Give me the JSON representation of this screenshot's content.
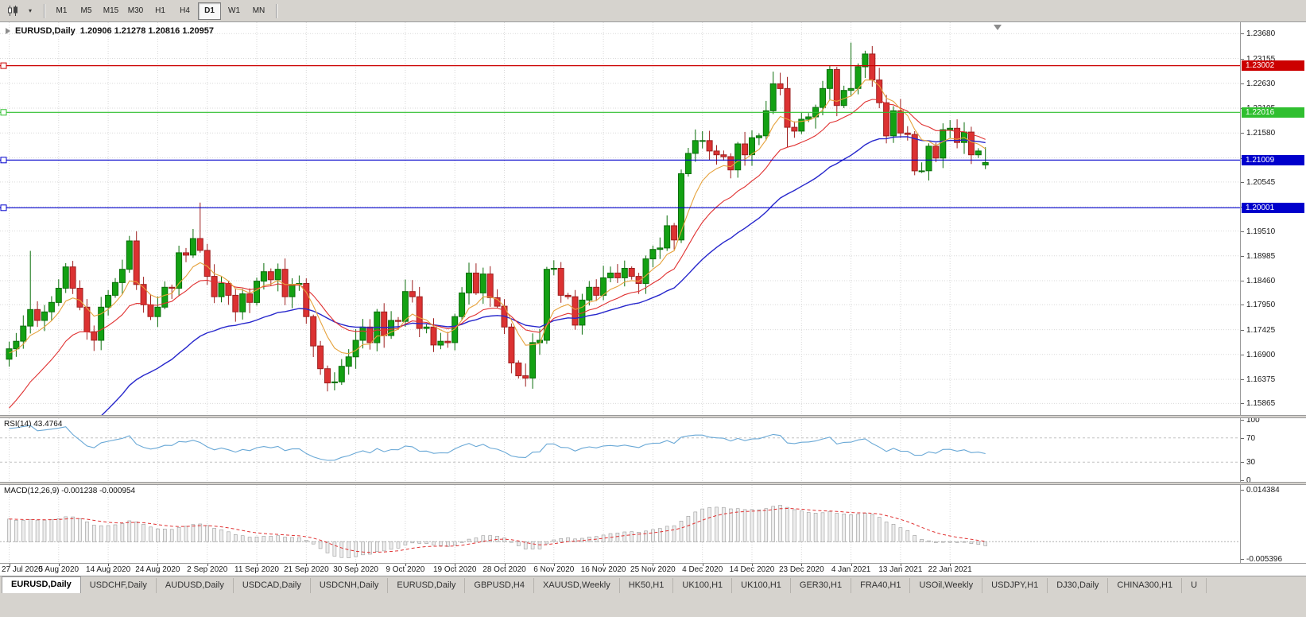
{
  "toolbar": {
    "periods": [
      "M1",
      "M5",
      "M15",
      "M30",
      "H1",
      "H4",
      "D1",
      "W1",
      "MN"
    ],
    "active_period": "D1"
  },
  "chart": {
    "title": "EURUSD,Daily",
    "ohlc_text": "1.20906 1.21278 1.20816 1.20957",
    "price_top": 1.2392,
    "price_bottom": 1.1562,
    "price_ticks": [
      1.2368,
      1.23155,
      1.2263,
      1.22105,
      1.2158,
      1.21055,
      1.20545,
      1.2002,
      1.1951,
      1.18985,
      1.1846,
      1.1795,
      1.17425,
      1.169,
      1.16375,
      1.15865
    ],
    "hlines": [
      {
        "value": 1.23002,
        "label": "1.23002",
        "color": "#cc0000"
      },
      {
        "value": 1.22016,
        "label": "1.22016",
        "color": "#2fbf2f"
      },
      {
        "value": 1.21009,
        "label": "1.21009",
        "color": "#0000cc"
      },
      {
        "value": 1.20001,
        "label": "1.20001",
        "color": "#0000cc"
      }
    ],
    "dates": [
      "27 Jul 2020",
      "5 Aug 2020",
      "14 Aug 2020",
      "24 Aug 2020",
      "2 Sep 2020",
      "11 Sep 2020",
      "21 Sep 2020",
      "30 Sep 2020",
      "9 Oct 2020",
      "19 Oct 2020",
      "28 Oct 2020",
      "6 Nov 2020",
      "16 Nov 2020",
      "25 Nov 2020",
      "4 Dec 2020",
      "14 Dec 2020",
      "23 Dec 2020",
      "4 Jan 2021",
      "13 Jan 2021",
      "22 Jan 2021"
    ],
    "colors": {
      "up_fill": "#13a113",
      "up_stroke": "#0b6e0b",
      "down_fill": "#dc3232",
      "down_stroke": "#9e1f1f",
      "grid": "#d9d9d9"
    }
  },
  "chart_data": {
    "type": "candlestick",
    "symbol": "EURUSD",
    "timeframe": "Daily",
    "current_ohlc": {
      "open": 1.20906,
      "high": 1.21278,
      "low": 1.20816,
      "close": 1.20957
    },
    "first_open": 1.168,
    "closes": [
      1.1702,
      1.1718,
      1.175,
      1.1785,
      1.1762,
      1.178,
      1.18,
      1.183,
      1.1875,
      1.183,
      1.179,
      1.1738,
      1.172,
      1.179,
      1.1815,
      1.1842,
      1.187,
      1.193,
      1.1838,
      1.1795,
      1.177,
      1.179,
      1.1832,
      1.183,
      1.1905,
      1.19,
      1.1935,
      1.191,
      1.1855,
      1.1812,
      1.184,
      1.1815,
      1.178,
      1.1818,
      1.18,
      1.1845,
      1.1865,
      1.1848,
      1.187,
      1.1812,
      1.1838,
      1.184,
      1.177,
      1.1708,
      1.166,
      1.163,
      1.1632,
      1.1665,
      1.1685,
      1.172,
      1.1748,
      1.1715,
      1.178,
      1.173,
      1.1762,
      1.176,
      1.1823,
      1.1812,
      1.1745,
      1.1748,
      1.171,
      1.1718,
      1.1715,
      1.177,
      1.182,
      1.1862,
      1.182,
      1.186,
      1.181,
      1.1792,
      1.1748,
      1.1672,
      1.1645,
      1.164,
      1.1715,
      1.172,
      1.187,
      1.1872,
      1.1815,
      1.1812,
      1.1752,
      1.1805,
      1.1832,
      1.1815,
      1.1852,
      1.1862,
      1.1852,
      1.1872,
      1.1855,
      1.184,
      1.1892,
      1.1912,
      1.1915,
      1.1962,
      1.1932,
      1.2072,
      1.2115,
      1.2142,
      1.2142,
      1.212,
      1.2112,
      1.2108,
      1.208,
      1.2135,
      1.2112,
      1.2148,
      1.2152,
      1.2205,
      1.2262,
      1.2252,
      1.217,
      1.2162,
      1.2187,
      1.2192,
      1.2212,
      1.2252,
      1.2292,
      1.2216,
      1.2248,
      1.2252,
      1.2298,
      1.2325,
      1.227,
      1.2222,
      1.2152,
      1.2205,
      1.2158,
      1.2155,
      1.2078,
      1.2078,
      1.213,
      1.2105,
      1.2165,
      1.2168,
      1.2138,
      1.216,
      1.2112,
      1.212,
      1.20957
    ],
    "overrides": {
      "3": {
        "h": 1.1909
      },
      "27": {
        "h": 1.2011
      },
      "45": {
        "l": 1.1612
      },
      "73": {
        "l": 1.1622
      },
      "110": {
        "l": 1.2128
      },
      "119": {
        "h": 1.2349
      },
      "138": {
        "o": 1.20906,
        "h": 1.21278,
        "l": 1.20816
      }
    },
    "moving_averages": [
      {
        "name": "slow",
        "color": "#2727cc",
        "period": 34,
        "seed": 1.128,
        "width": 1.4
      },
      {
        "name": "medium",
        "color": "#e03131",
        "period": 16,
        "seed": 1.156,
        "width": 1.1
      },
      {
        "name": "fast",
        "color": "#e6a23c",
        "period": 7,
        "seed": 1.169,
        "width": 1.1
      }
    ]
  },
  "rsi": {
    "label": "RSI(14)",
    "value_text": "43.4764",
    "period": 14,
    "axis_labels": [
      100,
      70,
      30,
      0
    ],
    "level_lines": [
      70,
      30
    ],
    "line_color": "#69a8d6"
  },
  "macd": {
    "label": "MACD(12,26,9)",
    "values_text": "-0.001238 -0.000954",
    "fast": 12,
    "slow": 26,
    "signal": 9,
    "fast_seed": 1.1702,
    "slow_seed": 1.164,
    "scale_max": 0.014384,
    "scale_min": -0.005396,
    "scale_max_text": "0.014384",
    "scale_min_text": "-0.005396",
    "hist_fill": "#ededed",
    "hist_stroke": "#9b9b9b",
    "signal_color": "#e03131"
  },
  "tabs": {
    "active_index": 0,
    "items": [
      "EURUSD,Daily",
      "USDCHF,Daily",
      "AUDUSD,Daily",
      "USDCAD,Daily",
      "USDCNH,Daily",
      "EURUSD,Daily",
      "GBPUSD,H4",
      "XAUUSD,Weekly",
      "HK50,H1",
      "UK100,H1",
      "UK100,H1",
      "GER30,H1",
      "FRA40,H1",
      "USOil,Weekly",
      "USDJPY,H1",
      "DJ30,Daily",
      "CHINA300,H1",
      "U"
    ]
  }
}
